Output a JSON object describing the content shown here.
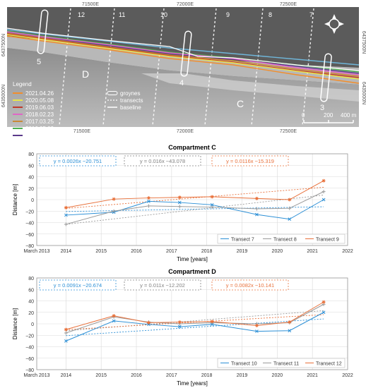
{
  "map": {
    "top_coords": [
      "71500E",
      "72000E",
      "72500E"
    ],
    "bottom_coords": [
      "71500E",
      "72000E",
      "72500E"
    ],
    "left_coords": [
      "6437500N",
      "6435000N"
    ],
    "right_coords": [
      "6437500N",
      "6435000N"
    ],
    "transect_numbers": [
      "12",
      "11",
      "10",
      "9",
      "8",
      "7"
    ],
    "groyne_numbers": [
      "5",
      "4",
      "3"
    ],
    "compartment_labels": [
      "D",
      "C"
    ],
    "legend_title": "Legend",
    "legend_left": [
      {
        "label": "2021.04.26",
        "color": "#f28e2b"
      },
      {
        "label": "2020.05.08",
        "color": "#e8e54a"
      },
      {
        "label": "2019.06.03",
        "color": "#c0392b"
      },
      {
        "label": "2018.02.23",
        "color": "#e066c6"
      },
      {
        "label": "2017.03.25",
        "color": "#c98a36"
      },
      {
        "label": "2016.05.09",
        "color": "#4caf50"
      },
      {
        "label": "2015.05.12",
        "color": "#5a3a8a"
      },
      {
        "label": "2014.01.01",
        "color": "#6fb5d8"
      }
    ],
    "legend_right": [
      {
        "label": "groynes",
        "icon": "groyne-icon"
      },
      {
        "label": "transects",
        "icon": "transect-line-icon"
      },
      {
        "label": "baseline",
        "icon": "baseline-icon"
      }
    ],
    "scale_labels": [
      "0",
      "200",
      "400 m"
    ],
    "compass_icon": "north-arrow-icon"
  },
  "chart_data": [
    {
      "type": "line",
      "title": "Compartment C",
      "xlabel": "Time [years]",
      "ylabel": "Distance [m]",
      "xlim": [
        2013.17,
        2022
      ],
      "ylim": [
        -80,
        80
      ],
      "x_ticks": [
        "March 2013",
        "2014",
        "2015",
        "2016",
        "2017",
        "2018",
        "2019",
        "2020",
        "2021",
        "2022"
      ],
      "y_ticks": [
        "80",
        "60",
        "40",
        "20",
        "0",
        "−20",
        "−40",
        "−60",
        "−80"
      ],
      "grid": true,
      "legend_position": "bottom-right",
      "x": [
        2014.0,
        2015.36,
        2016.35,
        2017.23,
        2018.15,
        2019.42,
        2020.35,
        2021.32
      ],
      "series": [
        {
          "name": "Transect 7",
          "color": "#2b8fd6",
          "marker": "x",
          "values": [
            -27,
            -22,
            -3,
            -5,
            -9,
            -26,
            -34,
            0
          ]
        },
        {
          "name": "Transect 8",
          "color": "#9a9a9a",
          "marker": "+",
          "values": [
            -43,
            -20,
            -11,
            -12,
            -13,
            -16,
            -15,
            14
          ]
        },
        {
          "name": "Transect 9",
          "color": "#e8703a",
          "marker": "*",
          "values": [
            -14,
            1,
            3,
            4,
            5,
            2,
            0,
            33
          ]
        }
      ],
      "equations": [
        {
          "text": "y = 0.0026x −20.751",
          "color": "#2b8fd6"
        },
        {
          "text": "y = 0.016x −43.078",
          "color": "#808080"
        },
        {
          "text": "y = 0.0116x −15.319",
          "color": "#e8703a"
        }
      ],
      "trendlines": [
        {
          "color": "#2b8fd6",
          "from": -20.751,
          "to": -12.4
        },
        {
          "color": "#9a9a9a",
          "from": -43.078,
          "to": 8
        },
        {
          "color": "#e8703a",
          "from": -15.319,
          "to": 21.6
        }
      ]
    },
    {
      "type": "line",
      "title": "Compartment D",
      "xlabel": "Time [years]",
      "ylabel": "Distance [m]",
      "xlim": [
        2013.17,
        2022
      ],
      "ylim": [
        -80,
        80
      ],
      "x_ticks": [
        "March 2013",
        "2014",
        "2015",
        "2016",
        "2017",
        "2018",
        "2019",
        "2020",
        "2021",
        "2022"
      ],
      "y_ticks": [
        "80",
        "60",
        "40",
        "20",
        "0",
        "−20",
        "−40",
        "−60",
        "−80"
      ],
      "grid": true,
      "legend_position": "bottom-right",
      "x": [
        2014.0,
        2015.36,
        2016.35,
        2017.23,
        2018.15,
        2019.42,
        2020.35,
        2021.32
      ],
      "series": [
        {
          "name": "Transect 10",
          "color": "#2b8fd6",
          "marker": "x",
          "values": [
            -30,
            5,
            -1,
            -5,
            -1,
            -13,
            -12,
            20
          ]
        },
        {
          "name": "Transect 11",
          "color": "#9a9a9a",
          "marker": "+",
          "values": [
            -16,
            12,
            3,
            0,
            2,
            0,
            2,
            34
          ]
        },
        {
          "name": "Transect 12",
          "color": "#e8703a",
          "marker": "*",
          "values": [
            -10,
            14,
            2,
            3,
            4,
            -3,
            3,
            38
          ]
        }
      ],
      "equations": [
        {
          "text": "y = 0.0091x −20.674",
          "color": "#2b8fd6"
        },
        {
          "text": "y = 0.011x −12.202",
          "color": "#808080"
        },
        {
          "text": "y = 0.0082x −10.141",
          "color": "#e8703a"
        }
      ],
      "trendlines": [
        {
          "color": "#2b8fd6",
          "from": -20.674,
          "to": 8.5
        },
        {
          "color": "#9a9a9a",
          "from": -12.202,
          "to": 23
        },
        {
          "color": "#e8703a",
          "from": -10.141,
          "to": 16
        }
      ]
    }
  ]
}
